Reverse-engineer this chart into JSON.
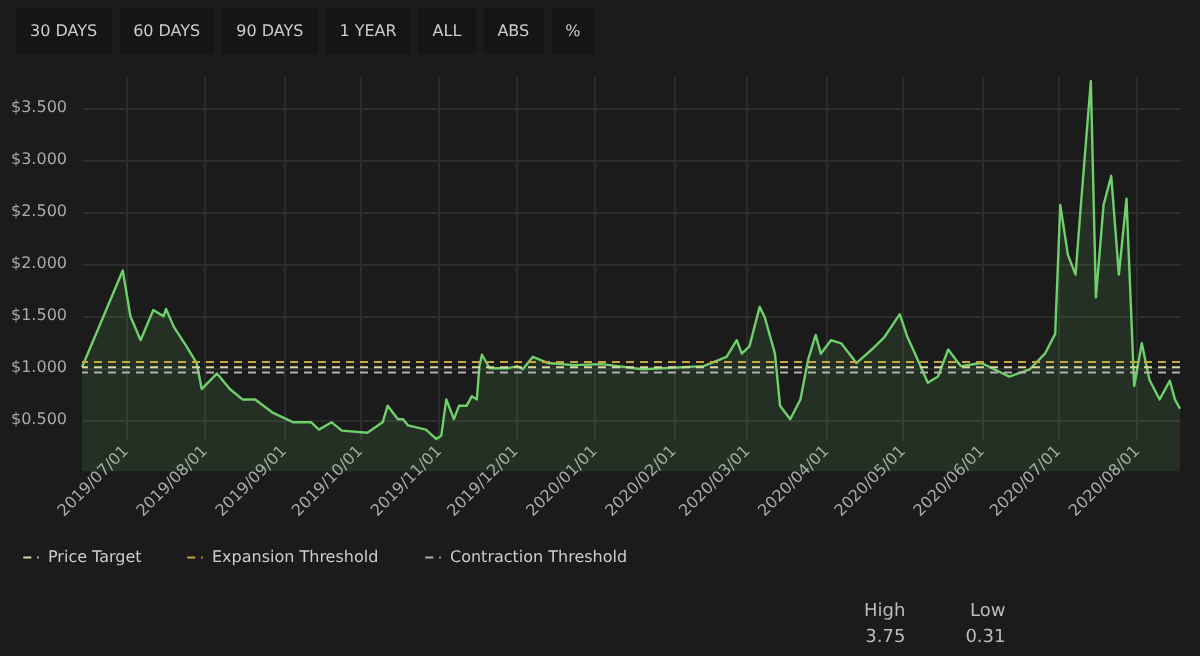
{
  "chart_data": {
    "type": "area",
    "x": [
      "2019-06-14",
      "2019-06-30",
      "2019-07-03",
      "2019-07-07",
      "2019-07-12",
      "2019-07-16",
      "2019-07-17",
      "2019-07-20",
      "2019-07-25",
      "2019-07-29",
      "2019-07-31",
      "2019-08-06",
      "2019-08-11",
      "2019-08-16",
      "2019-08-21",
      "2019-08-28",
      "2019-09-05",
      "2019-09-12",
      "2019-09-15",
      "2019-09-20",
      "2019-09-24",
      "2019-10-04",
      "2019-10-10",
      "2019-10-12",
      "2019-10-16",
      "2019-10-18",
      "2019-10-20",
      "2019-10-27",
      "2019-10-31",
      "2019-11-02",
      "2019-11-04",
      "2019-11-07",
      "2019-11-09",
      "2019-11-12",
      "2019-11-14",
      "2019-11-16",
      "2019-11-17",
      "2019-11-18",
      "2019-11-21",
      "2019-11-28",
      "2019-12-02",
      "2019-12-04",
      "2019-12-08",
      "2019-12-14",
      "2019-12-24",
      "2020-01-04",
      "2020-01-20",
      "2020-02-13",
      "2020-02-22",
      "2020-02-26",
      "2020-02-28",
      "2020-03-02",
      "2020-03-06",
      "2020-03-08",
      "2020-03-12",
      "2020-03-14",
      "2020-03-18",
      "2020-03-22",
      "2020-03-25",
      "2020-03-28",
      "2020-03-30",
      "2020-04-03",
      "2020-04-07",
      "2020-04-13",
      "2020-04-19",
      "2020-04-24",
      "2020-04-30",
      "2020-05-03",
      "2020-05-06",
      "2020-05-11",
      "2020-05-15",
      "2020-05-19",
      "2020-05-24",
      "2020-06-01",
      "2020-06-12",
      "2020-06-20",
      "2020-06-26",
      "2020-06-30",
      "2020-07-02",
      "2020-07-05",
      "2020-07-08",
      "2020-07-10",
      "2020-07-14",
      "2020-07-16",
      "2020-07-19",
      "2020-07-22",
      "2020-07-25",
      "2020-07-28",
      "2020-07-31",
      "2020-08-03",
      "2020-08-06",
      "2020-08-10",
      "2020-08-14",
      "2020-08-16",
      "2020-08-18"
    ],
    "series": [
      {
        "color": "#6fcf6a",
        "values": [
          1.0,
          1.93,
          1.49,
          1.26,
          1.55,
          1.49,
          1.56,
          1.39,
          1.2,
          1.04,
          0.79,
          0.94,
          0.79,
          0.69,
          0.69,
          0.56,
          0.47,
          0.47,
          0.4,
          0.47,
          0.39,
          0.37,
          0.47,
          0.63,
          0.5,
          0.5,
          0.44,
          0.4,
          0.31,
          0.34,
          0.69,
          0.5,
          0.63,
          0.63,
          0.72,
          0.69,
          1.01,
          1.12,
          0.99,
          0.99,
          1.01,
          0.98,
          1.1,
          1.04,
          1.02,
          1.03,
          0.98,
          1.01,
          1.1,
          1.26,
          1.13,
          1.2,
          1.58,
          1.48,
          1.13,
          0.63,
          0.5,
          0.69,
          1.07,
          1.31,
          1.13,
          1.26,
          1.23,
          1.04,
          1.17,
          1.29,
          1.51,
          1.29,
          1.13,
          0.85,
          0.91,
          1.17,
          1.01,
          1.04,
          0.91,
          0.98,
          1.13,
          1.32,
          2.56,
          2.08,
          1.89,
          2.53,
          3.75,
          1.67,
          2.56,
          2.84,
          1.89,
          2.62,
          0.82,
          1.23,
          0.88,
          0.69,
          0.87,
          0.69,
          0.6
        ]
      }
    ],
    "xlim": [
      "2019-06-14",
      "2020-08-18"
    ],
    "xticks": [
      {
        "value": "2019-07-01",
        "label": "2019/07/01"
      },
      {
        "value": "2019-08-01",
        "label": "2019/08/01"
      },
      {
        "value": "2019-09-01",
        "label": "2019/09/01"
      },
      {
        "value": "2019-10-01",
        "label": "2019/10/01"
      },
      {
        "value": "2019-11-01",
        "label": "2019/11/01"
      },
      {
        "value": "2019-12-01",
        "label": "2019/12/01"
      },
      {
        "value": "2020-01-01",
        "label": "2020/01/01"
      },
      {
        "value": "2020-02-01",
        "label": "2020/02/01"
      },
      {
        "value": "2020-03-01",
        "label": "2020/03/01"
      },
      {
        "value": "2020-04-01",
        "label": "2020/04/01"
      },
      {
        "value": "2020-05-01",
        "label": "2020/05/01"
      },
      {
        "value": "2020-06-01",
        "label": "2020/06/01"
      },
      {
        "value": "2020-07-01",
        "label": "2020/07/01"
      },
      {
        "value": "2020-08-01",
        "label": "2020/08/01"
      }
    ],
    "ylim": [
      0.3,
      3.8
    ],
    "yticks": [
      {
        "value": 0.5,
        "label": "$0.500"
      },
      {
        "value": 1,
        "label": "$1.000"
      },
      {
        "value": 1.5,
        "label": "$1.500"
      },
      {
        "value": 2,
        "label": "$2.000"
      },
      {
        "value": 2.5,
        "label": "$2.500"
      },
      {
        "value": 3,
        "label": "$3.000"
      },
      {
        "value": 3.5,
        "label": "$3.500"
      }
    ],
    "ref_lines": [
      {
        "axis": "y",
        "value": 1.0,
        "label": "Price Target",
        "color": "#d8d8a0",
        "line_style": "dashed"
      },
      {
        "axis": "y",
        "value": 1.05,
        "label": "Expansion Threshold",
        "color": "#c8a838",
        "line_style": "dashed"
      },
      {
        "axis": "y",
        "value": 0.95,
        "label": "Contraction Threshold",
        "color": "#b0b0b0",
        "line_style": "dashed"
      }
    ],
    "grid": true,
    "legend": "bottom left",
    "annotations": [
      "30 DAYS",
      "60 DAYS",
      "90 DAYS",
      "1 YEAR",
      "ALL",
      "ABS",
      "%",
      "High",
      "3.75",
      "Low",
      "0.31"
    ]
  }
}
